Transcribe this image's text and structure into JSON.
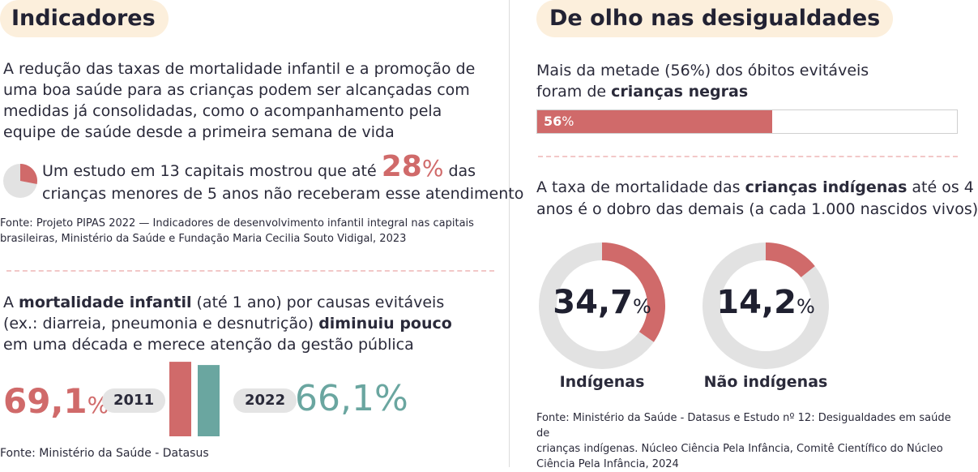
{
  "left": {
    "title": "Indicadores",
    "intro": [
      "A redução das taxas de mortalidade infantil e a promoção de",
      "uma boa saúde para as crianças podem ser alcançadas com",
      "medidas já consolidadas, como o acompanhamento pela",
      "equipe de saúde desde a primeira semana de vida"
    ],
    "study_pre": "Um estudo em 13 capitais mostrou que até",
    "study_num": "28",
    "study_pct": "%",
    "study_post": "das",
    "study_line2": "crianças menores de 5 anos não receberam esse atendimento",
    "source1": [
      "Fonte: Projeto PIPAS 2022 — Indicadores de desenvolvimento infantil integral nas capitais",
      "brasileiras, Ministério da Saúde e Fundação Maria Cecilia Souto Vidigal, 2023"
    ],
    "mort_line1_a": "A ",
    "mort_line1_b": "mortalidade infantil",
    "mort_line1_c": " (até 1 ano) por causas evitáveis",
    "mort_line2_a": "(ex.: diarreia, pneumonia e desnutrição) ",
    "mort_line2_b": "diminuiu pouco",
    "mort_line3": "em uma década e merece atenção da gestão pública",
    "val_2011": "69,1",
    "val_2022": "66,1",
    "pct": "%",
    "year_2011": "2011",
    "year_2022": "2022",
    "source2": "Fonte: Ministério da Saúde - Datasus"
  },
  "right": {
    "title": "De olho nas desigualdades",
    "black_line1": "Mais da metade (56%) dos óbitos evitáveis",
    "black_line2_a": "foram de ",
    "black_line2_b": "crianças negras",
    "bar_label_num": "56",
    "bar_label_pct": "%",
    "ind_line1_a": "A taxa de mortalidade das ",
    "ind_line1_b": "crianças indígenas",
    "ind_line1_c": " até os 4",
    "ind_line2": "anos é o dobro das demais (a cada 1.000 nascidos vivos)",
    "donut1_num": "34,7",
    "donut2_num": "14,2",
    "donut_pct": "%",
    "donut1_label": "Indígenas",
    "donut2_label": "Não indígenas",
    "source3": [
      "Fonte: Ministério da Saúde - Datasus e Estudo nº 12: Desigualdades em saúde de",
      "crianças indígenas.  Núcleo Ciência Pela Infância, Comitê Científico do Núcleo",
      "Ciência Pela Infância, 2024"
    ]
  },
  "colors": {
    "red": "#d06a6a",
    "teal": "#6aa6a0",
    "grey": "#e2e2e2",
    "pill": "#fcefdc"
  },
  "chart_data": [
    {
      "type": "pie",
      "title": "",
      "values": [
        28,
        72
      ],
      "unit": "%"
    },
    {
      "type": "bar",
      "categories": [
        "2011",
        "2022"
      ],
      "values": [
        69.1,
        66.1
      ],
      "unit": "%"
    },
    {
      "type": "bar",
      "title": "",
      "values": [
        56
      ],
      "max": 100,
      "unit": "%"
    },
    {
      "type": "pie",
      "categories": [
        "Indígenas",
        "Não indígenas"
      ],
      "values": [
        34.7,
        14.2
      ],
      "max": 100,
      "unit": "%"
    }
  ]
}
